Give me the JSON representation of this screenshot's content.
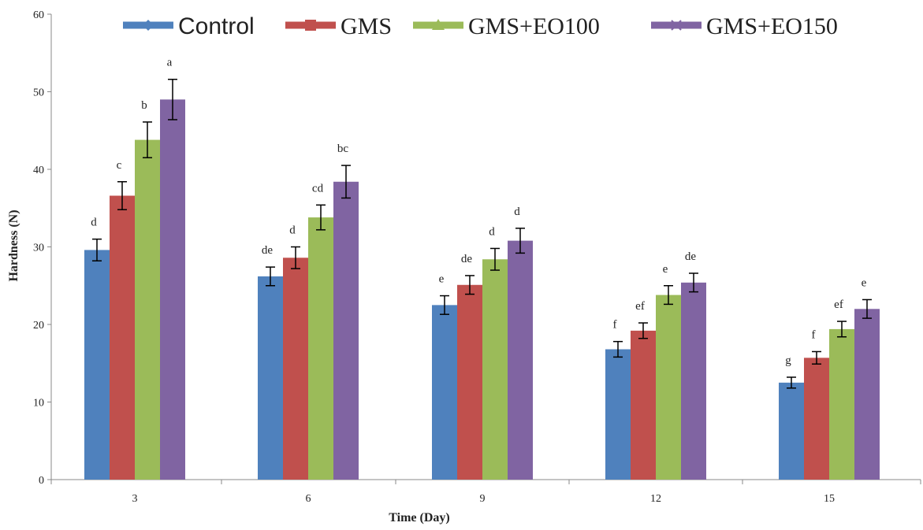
{
  "chart_data": {
    "type": "bar",
    "title": "",
    "xlabel": "Time (Day)",
    "ylabel": "Hardness (N)",
    "ylim": [
      0,
      60
    ],
    "yticks": [
      0,
      10,
      20,
      30,
      40,
      50,
      60
    ],
    "grid": false,
    "legend_position": "top",
    "categories": [
      "3",
      "6",
      "9",
      "12",
      "15"
    ],
    "series": [
      {
        "name": "Control",
        "color": "#4F81BD",
        "values": [
          29.6,
          26.2,
          22.5,
          16.8,
          12.5
        ],
        "errors": [
          1.4,
          1.2,
          1.2,
          1.0,
          0.7
        ],
        "labels": [
          "d",
          "de",
          "e",
          "f",
          "g"
        ]
      },
      {
        "name": "GMS",
        "color": "#C0504D",
        "values": [
          36.6,
          28.6,
          25.1,
          19.2,
          15.7
        ],
        "errors": [
          1.8,
          1.4,
          1.2,
          1.0,
          0.8
        ],
        "labels": [
          "c",
          "d",
          "de",
          "ef",
          "f"
        ]
      },
      {
        "name": "GMS+EO100",
        "color": "#9BBB59",
        "values": [
          43.8,
          33.8,
          28.4,
          23.8,
          19.4
        ],
        "errors": [
          2.3,
          1.6,
          1.4,
          1.2,
          1.0
        ],
        "labels": [
          "b",
          "cd",
          "d",
          "e",
          "ef"
        ]
      },
      {
        "name": "GMS+EO150",
        "color": "#8064A2",
        "values": [
          49.0,
          38.4,
          30.8,
          25.4,
          22.0
        ],
        "errors": [
          2.6,
          2.1,
          1.6,
          1.2,
          1.2
        ],
        "labels": [
          "a",
          "bc",
          "d",
          "de",
          "e"
        ]
      }
    ]
  }
}
